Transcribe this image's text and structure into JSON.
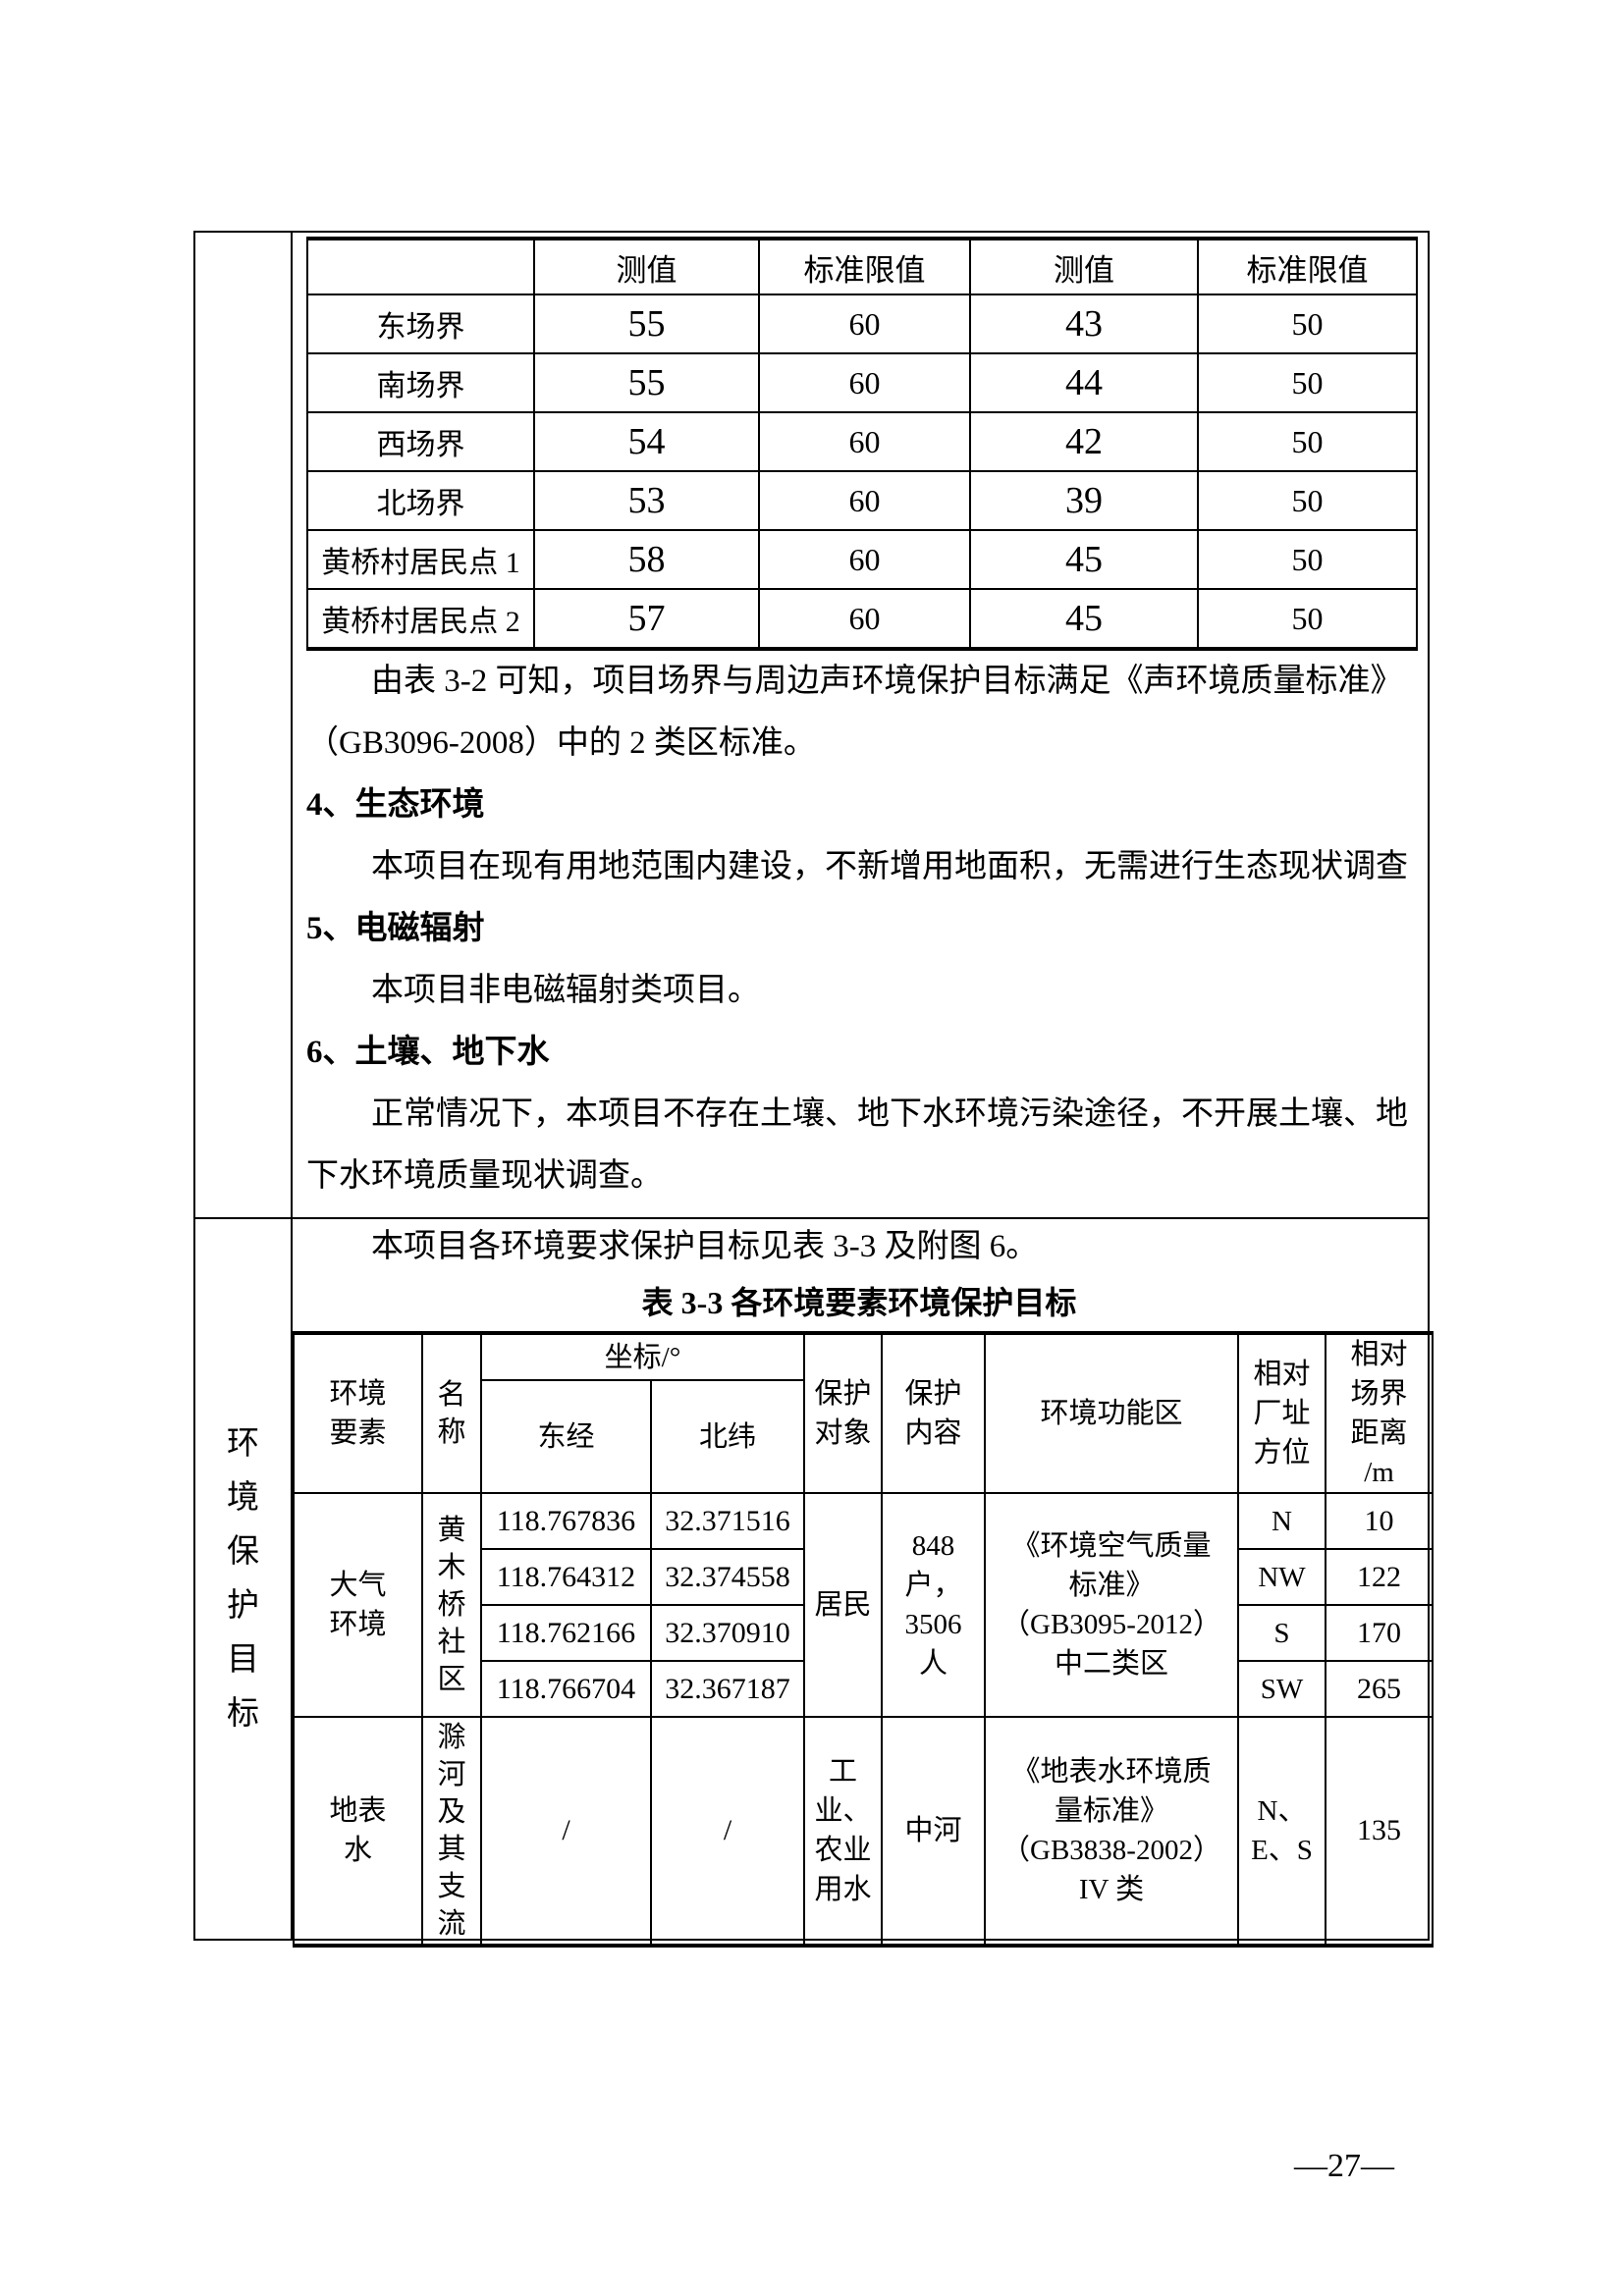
{
  "noise_table": {
    "header": [
      "测值",
      "标准限值",
      "测值",
      "标准限值"
    ],
    "rows": [
      [
        "东场界",
        "55",
        "60",
        "43",
        "50"
      ],
      [
        "南场界",
        "55",
        "60",
        "44",
        "50"
      ],
      [
        "西场界",
        "54",
        "60",
        "42",
        "50"
      ],
      [
        "北场界",
        "53",
        "60",
        "39",
        "50"
      ],
      [
        "黄桥村居民点 1",
        "58",
        "60",
        "45",
        "50"
      ],
      [
        "黄桥村居民点 2",
        "57",
        "60",
        "45",
        "50"
      ]
    ]
  },
  "sections": {
    "conclusion": [
      "由表 3-2 可知，项目场界与周边声环境保护目标满足《声环境质量标准》",
      "（GB3096-2008）中的 2 类区标准。"
    ],
    "h4": "4、生态环境",
    "p4": "本项目在现有用地范围内建设，不新增用地面积，无需进行生态现状调查",
    "h5": "5、电磁辐射",
    "p5": "本项目非电磁辐射类项目。",
    "h6": "6、土壤、地下水",
    "p6": [
      "正常情况下，本项目不存在土壤、地下水环境污染途径，不开展土壤、地",
      "下水环境质量现状调查。"
    ]
  },
  "protection": {
    "sidebar": "环境保护目标",
    "intro": "本项目各环境要求保护目标见表 3-3 及附图 6。",
    "title": "表 3-3 各环境要素环境保护目标",
    "headers": {
      "element": [
        "环境",
        "要素"
      ],
      "name": "名称",
      "coord": "坐标/°",
      "lon": "东经",
      "lat": "北纬",
      "obj": [
        "保护",
        "对象"
      ],
      "content": [
        "保护",
        "内容"
      ],
      "zone": "环境功能区",
      "dir": [
        "相对",
        "厂址",
        "方位"
      ],
      "dist": [
        "相对",
        "场界",
        "距离",
        "/m"
      ]
    },
    "air": {
      "element": [
        "大气",
        "环境"
      ],
      "name": "黄木桥社区",
      "coords": [
        [
          "118.767836",
          "32.371516"
        ],
        [
          "118.764312",
          "32.374558"
        ],
        [
          "118.762166",
          "32.370910"
        ],
        [
          "118.766704",
          "32.367187"
        ]
      ],
      "obj": "居民",
      "content_lines": [
        "848",
        "户，",
        "3506",
        "人"
      ],
      "zone_lines": [
        "《环境空气质量",
        "标准》",
        "（GB3095-2012）",
        "中二类区"
      ],
      "dirs": [
        [
          "N",
          "10"
        ],
        [
          "NW",
          "122"
        ],
        [
          "S",
          "170"
        ],
        [
          "SW",
          "265"
        ]
      ]
    },
    "water": {
      "element": [
        "地表",
        "水"
      ],
      "name": "滁河及其支流",
      "lon": "/",
      "lat": "/",
      "obj_lines": [
        "工",
        "业、",
        "农业",
        "用水"
      ],
      "content": "中河",
      "zone_lines": [
        "《地表水环境质",
        "量标准》",
        "（GB3838-2002）",
        "IV 类"
      ],
      "dir_lines": [
        "N、",
        "E、S"
      ],
      "dist": "135"
    }
  },
  "page": {
    "number": "—27—"
  }
}
